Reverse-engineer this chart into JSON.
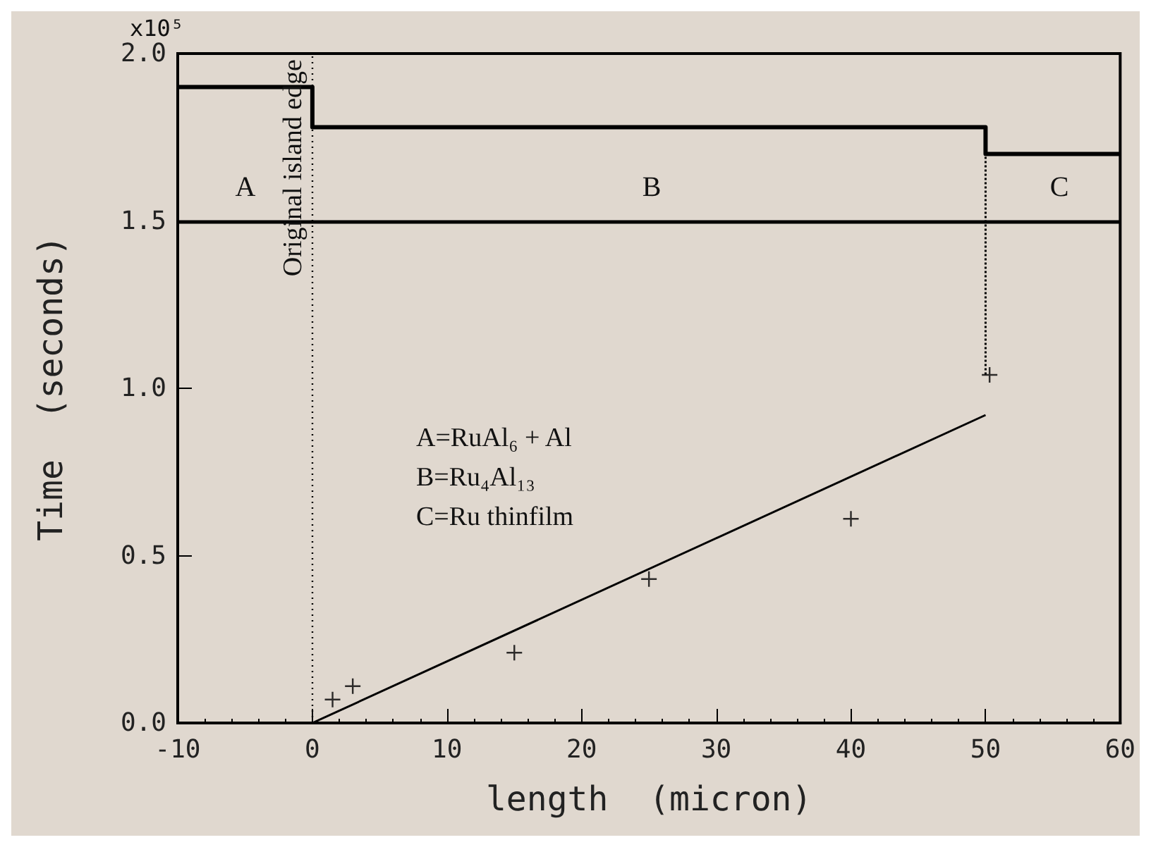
{
  "chart_data": {
    "type": "scatter",
    "xlabel": "length  (micron)",
    "ylabel": "Time  (seconds)",
    "xlim": [
      -10,
      60
    ],
    "xticks": [
      -10,
      0,
      10,
      20,
      30,
      40,
      50,
      60
    ],
    "ylim": [
      0,
      2.0
    ],
    "yticks": [
      {
        "value": 0,
        "label": "0.0"
      },
      0.5,
      {
        "value": 1,
        "label": "1.0"
      },
      1.5,
      {
        "value": 2,
        "label": "2.0"
      }
    ],
    "grid": false,
    "series": [
      {
        "type": "step",
        "color": "#000000",
        "x": [
          -10,
          0,
          50,
          60
        ],
        "values": [
          1.9,
          1.78,
          1.7,
          1.7
        ]
      },
      {
        "type": "line",
        "color": "#000000",
        "line_style": "dotted",
        "x": [
          50,
          50
        ],
        "values": [
          1.78,
          1.04
        ]
      },
      {
        "type": "line",
        "color": "#000000",
        "x": [
          0,
          50
        ],
        "values": [
          0,
          0.92
        ]
      },
      {
        "color": "#000000",
        "marker": "cross",
        "x": [
          1.5,
          3,
          15,
          25,
          40,
          50.3
        ],
        "values": [
          0.07,
          0.11,
          0.21,
          0.43,
          0.61,
          1.04
        ]
      }
    ],
    "ref_lines": [
      {
        "axis": "x",
        "value": 0,
        "label": "Original island edge",
        "line_style": "dotted"
      },
      {
        "axis": "y",
        "value": 1.5,
        "label": null,
        "line_style": "solid"
      }
    ],
    "annotations": [
      "A",
      "B",
      "C",
      "A=RuAl₆ + Al",
      "B=Ru₄Al₁₃",
      "C=Ru thinfilm",
      "x10⁵"
    ]
  }
}
